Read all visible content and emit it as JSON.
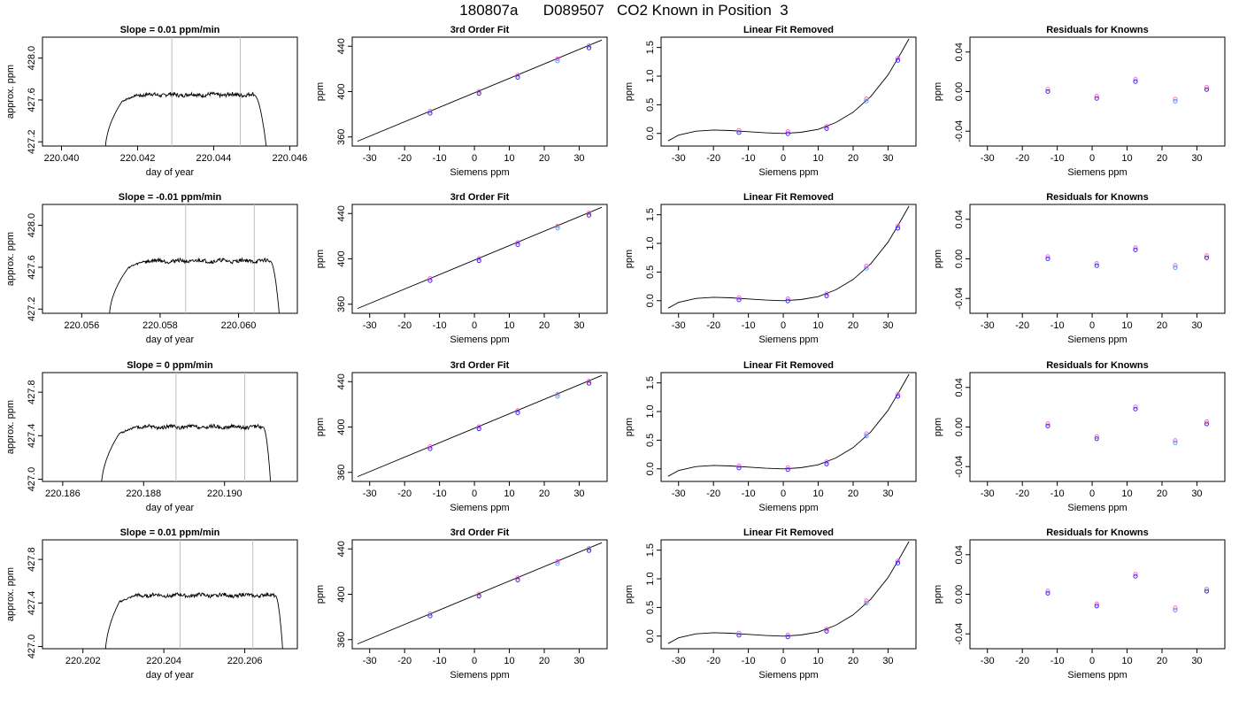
{
  "title": "180807a      D089507   CO2 Known in Position  3",
  "chart_data": [
    {
      "type": "line",
      "title": "Slope =  0.01  ppm/min",
      "xlabel": "day of year",
      "ylabel": "approx. ppm",
      "xlim": [
        220.0395,
        220.0462
      ],
      "ylim": [
        427.16,
        428.2
      ],
      "xticks": [
        "220.040",
        "220.042",
        "220.044",
        "220.046"
      ],
      "xtick_values": [
        220.04,
        220.042,
        220.044,
        220.046
      ],
      "yticks": [
        "427.2",
        "427.6",
        "428.0"
      ],
      "ytick_values": [
        427.2,
        427.6,
        428.0
      ],
      "vlines": [
        220.0429,
        220.0447
      ],
      "trace": {
        "start": 220.04115,
        "rise_end": 220.0416,
        "plateau_start": 220.042,
        "plateau_end": 220.04505,
        "end": 220.0454,
        "base": 427.1,
        "level": 427.65,
        "amp": 0.018
      }
    },
    {
      "type": "scatter",
      "title": "3rd Order Fit",
      "xlabel": "Siemens ppm",
      "ylabel": "ppm",
      "xlim": [
        -35,
        38
      ],
      "ylim": [
        352,
        448
      ],
      "xticks": [
        "-30",
        "-20",
        "-10",
        "0",
        "10",
        "20",
        "30"
      ],
      "xtick_values": [
        -30,
        -20,
        -10,
        0,
        10,
        20,
        30
      ],
      "yticks": [
        "360",
        "400",
        "440"
      ],
      "ytick_values": [
        360,
        400,
        440
      ],
      "fit_line": {
        "x": [
          -33.5,
          36.5
        ],
        "y": [
          356.2,
          445.5
        ]
      },
      "points": {
        "x": [
          -12.7,
          1.3,
          12.4,
          23.8,
          32.8
        ],
        "y": [
          381.6,
          399.2,
          413.3,
          427.8,
          439.3
        ]
      }
    },
    {
      "type": "scatter",
      "title": "Linear Fit Removed",
      "xlabel": "Siemens ppm",
      "ylabel": "ppm",
      "xlim": [
        -35,
        38
      ],
      "ylim": [
        -0.22,
        1.68
      ],
      "xticks": [
        "-30",
        "-20",
        "-10",
        "0",
        "10",
        "20",
        "30"
      ],
      "xtick_values": [
        -30,
        -20,
        -10,
        0,
        10,
        20,
        30
      ],
      "yticks": [
        "0.0",
        "0.5",
        "1.0",
        "1.5"
      ],
      "ytick_values": [
        0,
        0.5,
        1.0,
        1.5
      ],
      "curve": {
        "x": [
          -33,
          -30,
          -25,
          -20,
          -15,
          -10,
          -5,
          0,
          5,
          10,
          15,
          20,
          25,
          30,
          33,
          36
        ],
        "y": [
          -0.13,
          -0.03,
          0.04,
          0.06,
          0.05,
          0.03,
          0.01,
          0.0,
          0.02,
          0.07,
          0.19,
          0.37,
          0.64,
          1.02,
          1.33,
          1.65
        ]
      },
      "points": {
        "x": [
          -12.7,
          1.3,
          12.4,
          23.8,
          32.8
        ],
        "y": [
          0.03,
          0.01,
          0.1,
          0.58,
          1.29
        ]
      }
    },
    {
      "type": "scatter",
      "title": "Residuals for Knowns",
      "xlabel": "Siemens ppm",
      "ylabel": "ppm",
      "xlim": [
        -35,
        38
      ],
      "ylim": [
        -0.055,
        0.055
      ],
      "xticks": [
        "-30",
        "-20",
        "-10",
        "0",
        "10",
        "20",
        "30"
      ],
      "xtick_values": [
        -30,
        -20,
        -10,
        0,
        10,
        20,
        30
      ],
      "yticks": [
        "-0.04",
        "0.00",
        "0.04"
      ],
      "ytick_values": [
        -0.04,
        0,
        0.04
      ],
      "points": {
        "x": [
          -12.7,
          1.3,
          12.4,
          23.8,
          32.8
        ],
        "y": [
          0.001,
          -0.006,
          0.011,
          -0.009,
          0.003
        ]
      }
    },
    {
      "type": "line",
      "title": "Slope =  -0.01  ppm/min",
      "xlabel": "day of year",
      "ylabel": "approx. ppm",
      "xlim": [
        220.055,
        220.0615
      ],
      "ylim": [
        427.16,
        428.2
      ],
      "xticks": [
        "220.056",
        "220.058",
        "220.060"
      ],
      "xtick_values": [
        220.056,
        220.058,
        220.06
      ],
      "yticks": [
        "427.2",
        "427.6",
        "428.0"
      ],
      "ytick_values": [
        427.2,
        427.6,
        428.0
      ],
      "vlines": [
        220.05865,
        220.0604
      ],
      "trace": {
        "start": 220.0567,
        "rise_end": 220.0572,
        "plateau_start": 220.0576,
        "plateau_end": 220.0608,
        "end": 220.06105,
        "base": 427.1,
        "level": 427.66,
        "amp": 0.018
      }
    },
    {
      "type": "scatter",
      "title": "3rd Order Fit",
      "xlabel": "Siemens ppm",
      "ylabel": "ppm",
      "xlim": [
        -35,
        38
      ],
      "ylim": [
        352,
        448
      ],
      "xticks": [
        "-30",
        "-20",
        "-10",
        "0",
        "10",
        "20",
        "30"
      ],
      "xtick_values": [
        -30,
        -20,
        -10,
        0,
        10,
        20,
        30
      ],
      "yticks": [
        "360",
        "400",
        "440"
      ],
      "ytick_values": [
        360,
        400,
        440
      ],
      "fit_line": {
        "x": [
          -33.5,
          36.5
        ],
        "y": [
          356.2,
          445.5
        ]
      },
      "points": {
        "x": [
          -12.7,
          1.3,
          12.4,
          23.8,
          32.8
        ],
        "y": [
          381.6,
          399.2,
          413.3,
          427.8,
          439.3
        ]
      }
    },
    {
      "type": "scatter",
      "title": "Linear Fit Removed",
      "xlabel": "Siemens ppm",
      "ylabel": "ppm",
      "xlim": [
        -35,
        38
      ],
      "ylim": [
        -0.22,
        1.68
      ],
      "xticks": [
        "-30",
        "-20",
        "-10",
        "0",
        "10",
        "20",
        "30"
      ],
      "xtick_values": [
        -30,
        -20,
        -10,
        0,
        10,
        20,
        30
      ],
      "yticks": [
        "0.0",
        "0.5",
        "1.0",
        "1.5"
      ],
      "ytick_values": [
        0,
        0.5,
        1.0,
        1.5
      ],
      "curve": {
        "x": [
          -33,
          -30,
          -25,
          -20,
          -15,
          -10,
          -5,
          0,
          5,
          10,
          15,
          20,
          25,
          30,
          33,
          36
        ],
        "y": [
          -0.13,
          -0.03,
          0.04,
          0.06,
          0.05,
          0.03,
          0.01,
          0.0,
          0.02,
          0.07,
          0.19,
          0.37,
          0.64,
          1.02,
          1.33,
          1.65
        ]
      },
      "points": {
        "x": [
          -12.7,
          1.3,
          12.4,
          23.8,
          32.8
        ],
        "y": [
          0.03,
          0.01,
          0.1,
          0.58,
          1.28
        ]
      }
    },
    {
      "type": "scatter",
      "title": "Residuals for Knowns",
      "xlabel": "Siemens ppm",
      "ylabel": "ppm",
      "xlim": [
        -35,
        38
      ],
      "ylim": [
        -0.055,
        0.055
      ],
      "xticks": [
        "-30",
        "-20",
        "-10",
        "0",
        "10",
        "20",
        "30"
      ],
      "xtick_values": [
        -30,
        -20,
        -10,
        0,
        10,
        20,
        30
      ],
      "yticks": [
        "-0.04",
        "0.00",
        "0.04"
      ],
      "ytick_values": [
        -0.04,
        0,
        0.04
      ],
      "points": {
        "x": [
          -12.7,
          1.3,
          12.4,
          23.8,
          32.8
        ],
        "y": [
          0.001,
          -0.006,
          0.01,
          -0.008,
          0.002
        ]
      }
    },
    {
      "type": "line",
      "title": "Slope =  0  ppm/min",
      "xlabel": "day of year",
      "ylabel": "approx. ppm",
      "xlim": [
        220.1855,
        220.1918
      ],
      "ylim": [
        426.98,
        427.98
      ],
      "xticks": [
        "220.186",
        "220.188",
        "220.190"
      ],
      "xtick_values": [
        220.186,
        220.188,
        220.19
      ],
      "yticks": [
        "427.0",
        "427.4",
        "427.8"
      ],
      "ytick_values": [
        427.0,
        427.4,
        427.8
      ],
      "vlines": [
        220.1888,
        220.1905
      ],
      "trace": {
        "start": 220.18695,
        "rise_end": 220.1874,
        "plateau_start": 220.1878,
        "plateau_end": 220.19095,
        "end": 220.19115,
        "base": 426.9,
        "level": 427.48,
        "amp": 0.016
      }
    },
    {
      "type": "scatter",
      "title": "3rd Order Fit",
      "xlabel": "Siemens ppm",
      "ylabel": "ppm",
      "xlim": [
        -35,
        38
      ],
      "ylim": [
        352,
        448
      ],
      "xticks": [
        "-30",
        "-20",
        "-10",
        "0",
        "10",
        "20",
        "30"
      ],
      "xtick_values": [
        -30,
        -20,
        -10,
        0,
        10,
        20,
        30
      ],
      "yticks": [
        "360",
        "400",
        "440"
      ],
      "ytick_values": [
        360,
        400,
        440
      ],
      "fit_line": {
        "x": [
          -33.5,
          36.5
        ],
        "y": [
          356.2,
          445.5
        ]
      },
      "points": {
        "x": [
          -12.7,
          1.3,
          12.4,
          23.8,
          32.8
        ],
        "y": [
          381.6,
          399.2,
          413.3,
          427.8,
          439.3
        ]
      }
    },
    {
      "type": "scatter",
      "title": "Linear Fit Removed",
      "xlabel": "Siemens ppm",
      "ylabel": "ppm",
      "xlim": [
        -35,
        38
      ],
      "ylim": [
        -0.22,
        1.68
      ],
      "xticks": [
        "-30",
        "-20",
        "-10",
        "0",
        "10",
        "20",
        "30"
      ],
      "xtick_values": [
        -30,
        -20,
        -10,
        0,
        10,
        20,
        30
      ],
      "yticks": [
        "0.0",
        "0.5",
        "1.0",
        "1.5"
      ],
      "ytick_values": [
        0,
        0.5,
        1.0,
        1.5
      ],
      "curve": {
        "x": [
          -33,
          -30,
          -25,
          -20,
          -15,
          -10,
          -5,
          0,
          5,
          10,
          15,
          20,
          25,
          30,
          33,
          36
        ],
        "y": [
          -0.13,
          -0.03,
          0.04,
          0.06,
          0.05,
          0.03,
          0.01,
          0.0,
          0.02,
          0.07,
          0.19,
          0.37,
          0.64,
          1.02,
          1.33,
          1.65
        ]
      },
      "points": {
        "x": [
          -12.7,
          1.3,
          12.4,
          23.8,
          32.8
        ],
        "y": [
          0.03,
          0.0,
          0.1,
          0.59,
          1.28
        ]
      }
    },
    {
      "type": "scatter",
      "title": "Residuals for Knowns",
      "xlabel": "Siemens ppm",
      "ylabel": "ppm",
      "xlim": [
        -35,
        38
      ],
      "ylim": [
        -0.055,
        0.055
      ],
      "xticks": [
        "-30",
        "-20",
        "-10",
        "0",
        "10",
        "20",
        "30"
      ],
      "xtick_values": [
        -30,
        -20,
        -10,
        0,
        10,
        20,
        30
      ],
      "yticks": [
        "-0.04",
        "0.00",
        "0.04"
      ],
      "ytick_values": [
        -0.04,
        0,
        0.04
      ],
      "points": {
        "x": [
          -12.7,
          1.3,
          12.4,
          23.8,
          32.8
        ],
        "y": [
          0.002,
          -0.011,
          0.019,
          -0.015,
          0.004
        ]
      }
    },
    {
      "type": "line",
      "title": "Slope =  0.01  ppm/min",
      "xlabel": "day of year",
      "ylabel": "approx. ppm",
      "xlim": [
        220.201,
        220.2073
      ],
      "ylim": [
        426.98,
        427.98
      ],
      "xticks": [
        "220.202",
        "220.204",
        "220.206"
      ],
      "xtick_values": [
        220.202,
        220.204,
        220.206
      ],
      "yticks": [
        "427.0",
        "427.4",
        "427.8"
      ],
      "ytick_values": [
        427.0,
        427.4,
        427.8
      ],
      "vlines": [
        220.2044,
        220.2062
      ],
      "trace": {
        "start": 220.20255,
        "rise_end": 220.2029,
        "plateau_start": 220.2033,
        "plateau_end": 220.20675,
        "end": 220.20695,
        "base": 426.9,
        "level": 427.47,
        "amp": 0.016
      }
    },
    {
      "type": "scatter",
      "title": "3rd Order Fit",
      "xlabel": "Siemens ppm",
      "ylabel": "ppm",
      "xlim": [
        -35,
        38
      ],
      "ylim": [
        352,
        448
      ],
      "xticks": [
        "-30",
        "-20",
        "-10",
        "0",
        "10",
        "20",
        "30"
      ],
      "xtick_values": [
        -30,
        -20,
        -10,
        0,
        10,
        20,
        30
      ],
      "yticks": [
        "360",
        "400",
        "440"
      ],
      "ytick_values": [
        360,
        400,
        440
      ],
      "fit_line": {
        "x": [
          -33.5,
          36.5
        ],
        "y": [
          356.2,
          445.5
        ]
      },
      "points": {
        "x": [
          -12.7,
          1.3,
          12.4,
          23.8,
          32.8
        ],
        "y": [
          381.6,
          399.2,
          413.3,
          427.8,
          439.3
        ]
      }
    },
    {
      "type": "scatter",
      "title": "Linear Fit Removed",
      "xlabel": "Siemens ppm",
      "ylabel": "ppm",
      "xlim": [
        -35,
        38
      ],
      "ylim": [
        -0.22,
        1.68
      ],
      "xticks": [
        "-30",
        "-20",
        "-10",
        "0",
        "10",
        "20",
        "30"
      ],
      "xtick_values": [
        -30,
        -20,
        -10,
        0,
        10,
        20,
        30
      ],
      "yticks": [
        "0.0",
        "0.5",
        "1.0",
        "1.5"
      ],
      "ytick_values": [
        0,
        0.5,
        1.0,
        1.5
      ],
      "curve": {
        "x": [
          -33,
          -30,
          -25,
          -20,
          -15,
          -10,
          -5,
          0,
          5,
          10,
          15,
          20,
          25,
          30,
          33,
          36
        ],
        "y": [
          -0.13,
          -0.03,
          0.04,
          0.06,
          0.05,
          0.03,
          0.01,
          0.0,
          0.02,
          0.07,
          0.19,
          0.37,
          0.64,
          1.02,
          1.33,
          1.65
        ]
      },
      "points": {
        "x": [
          -12.7,
          1.3,
          12.4,
          23.8,
          32.8
        ],
        "y": [
          0.03,
          0.0,
          0.1,
          0.59,
          1.29
        ]
      }
    },
    {
      "type": "scatter",
      "title": "Residuals for Knowns",
      "xlabel": "Siemens ppm",
      "ylabel": "ppm",
      "xlim": [
        -35,
        38
      ],
      "ylim": [
        -0.055,
        0.055
      ],
      "xticks": [
        "-30",
        "-20",
        "-10",
        "0",
        "10",
        "20",
        "30"
      ],
      "xtick_values": [
        -30,
        -20,
        -10,
        0,
        10,
        20,
        30
      ],
      "yticks": [
        "-0.04",
        "0.00",
        "0.04"
      ],
      "ytick_values": [
        -0.04,
        0,
        0.04
      ],
      "points": {
        "x": [
          -12.7,
          1.3,
          12.4,
          23.8,
          32.8
        ],
        "y": [
          0.002,
          -0.011,
          0.019,
          -0.015,
          0.004
        ]
      }
    }
  ]
}
